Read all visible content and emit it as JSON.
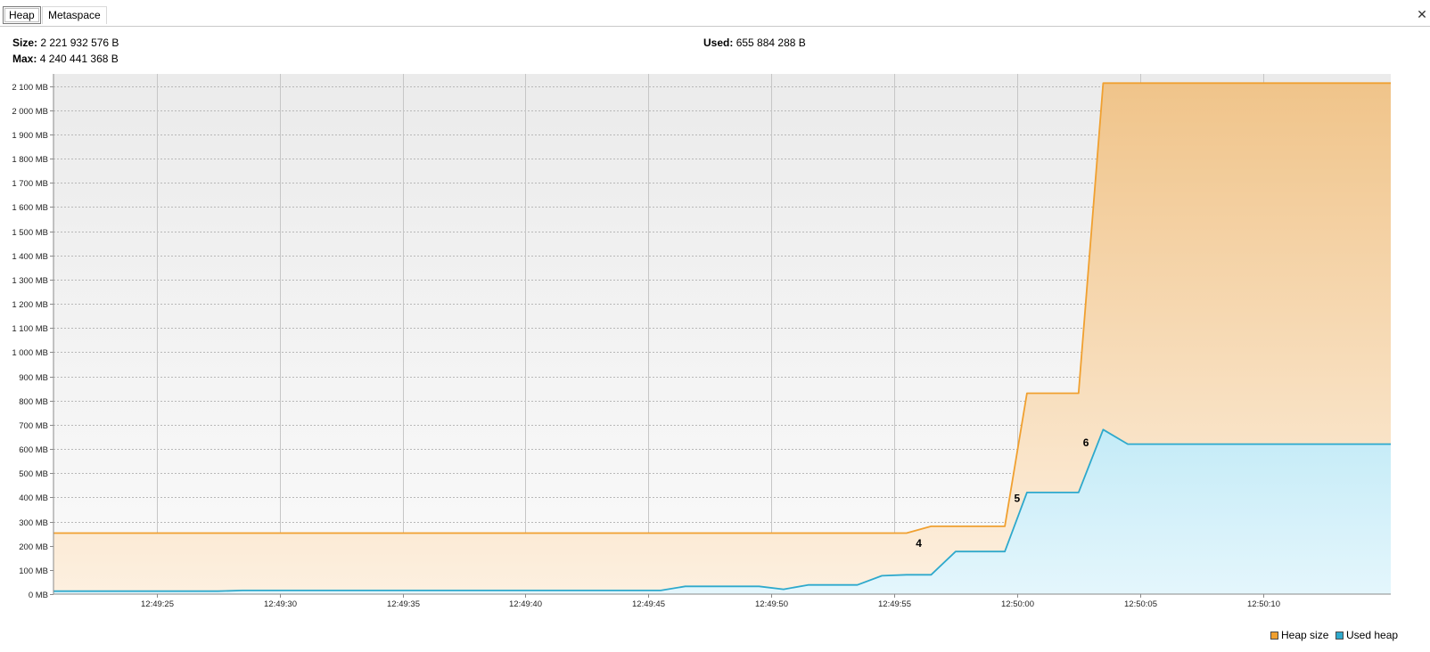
{
  "tabs": [
    {
      "label": "Heap",
      "selected": true
    },
    {
      "label": "Metaspace",
      "selected": false
    }
  ],
  "close_icon": "close-icon",
  "stats": {
    "size_label": "Size:",
    "size_value": "2 221 932 576 B",
    "max_label": "Max:",
    "max_value": "4 240 441 368 B",
    "used_label": "Used:",
    "used_value": "655 884 288 B"
  },
  "colors": {
    "heap_size": "#f0a030",
    "used_heap": "#2ea9cc",
    "plot_background_top": "#ebebeb",
    "plot_background_bottom": "#fafafa"
  },
  "chart_data": {
    "type": "area",
    "x_unit": "seconds after 12:49:20",
    "xlim": [
      0.8,
      55.2
    ],
    "ylim": [
      0,
      2150
    ],
    "y_unit": "MB",
    "grid": true,
    "legend_position": "bottom-right",
    "x_ticks": [
      {
        "label": "12:49:25",
        "x": 5
      },
      {
        "label": "12:49:30",
        "x": 10
      },
      {
        "label": "12:49:35",
        "x": 15
      },
      {
        "label": "12:49:40",
        "x": 20
      },
      {
        "label": "12:49:45",
        "x": 25
      },
      {
        "label": "12:49:50",
        "x": 30
      },
      {
        "label": "12:49:55",
        "x": 35
      },
      {
        "label": "12:50:00",
        "x": 40
      },
      {
        "label": "12:50:05",
        "x": 45
      },
      {
        "label": "12:50:10",
        "x": 50
      }
    ],
    "y_ticks": [
      {
        "label": "0 MB",
        "v": 0
      },
      {
        "label": "100 MB",
        "v": 100
      },
      {
        "label": "200 MB",
        "v": 200
      },
      {
        "label": "300 MB",
        "v": 300
      },
      {
        "label": "400 MB",
        "v": 400
      },
      {
        "label": "500 MB",
        "v": 500
      },
      {
        "label": "600 MB",
        "v": 600
      },
      {
        "label": "700 MB",
        "v": 700
      },
      {
        "label": "800 MB",
        "v": 800
      },
      {
        "label": "900 MB",
        "v": 900
      },
      {
        "label": "1 000 MB",
        "v": 1000
      },
      {
        "label": "1 100 MB",
        "v": 1100
      },
      {
        "label": "1 200 MB",
        "v": 1200
      },
      {
        "label": "1 300 MB",
        "v": 1300
      },
      {
        "label": "1 400 MB",
        "v": 1400
      },
      {
        "label": "1 500 MB",
        "v": 1500
      },
      {
        "label": "1 600 MB",
        "v": 1600
      },
      {
        "label": "1 700 MB",
        "v": 1700
      },
      {
        "label": "1 800 MB",
        "v": 1800
      },
      {
        "label": "1 900 MB",
        "v": 1900
      },
      {
        "label": "2 000 MB",
        "v": 2000
      },
      {
        "label": "2 100 MB",
        "v": 2100
      }
    ],
    "series": [
      {
        "name": "Heap size",
        "color": "#f0a030",
        "points": [
          [
            0.8,
            252
          ],
          [
            35.5,
            252
          ],
          [
            36.5,
            280
          ],
          [
            39.5,
            280
          ],
          [
            40.4,
            830
          ],
          [
            42.5,
            830
          ],
          [
            43.5,
            2112
          ],
          [
            55.2,
            2112
          ]
        ]
      },
      {
        "name": "Used heap",
        "color": "#2ea9cc",
        "points": [
          [
            0.8,
            12
          ],
          [
            7.5,
            12
          ],
          [
            8.5,
            15
          ],
          [
            25.5,
            15
          ],
          [
            26.5,
            32
          ],
          [
            29.5,
            32
          ],
          [
            30.5,
            20
          ],
          [
            31.5,
            38
          ],
          [
            33.5,
            38
          ],
          [
            34.5,
            76
          ],
          [
            35.5,
            80
          ],
          [
            36.5,
            80
          ],
          [
            37.5,
            176
          ],
          [
            39.5,
            176
          ],
          [
            40.4,
            420
          ],
          [
            42.5,
            420
          ],
          [
            43.5,
            680
          ],
          [
            44.5,
            620
          ],
          [
            55.2,
            620
          ]
        ]
      }
    ],
    "annotations": [
      {
        "label": "4",
        "x": 36.0,
        "v": 210
      },
      {
        "label": "5",
        "x": 40.0,
        "v": 395
      },
      {
        "label": "6",
        "x": 42.8,
        "v": 625
      }
    ]
  }
}
